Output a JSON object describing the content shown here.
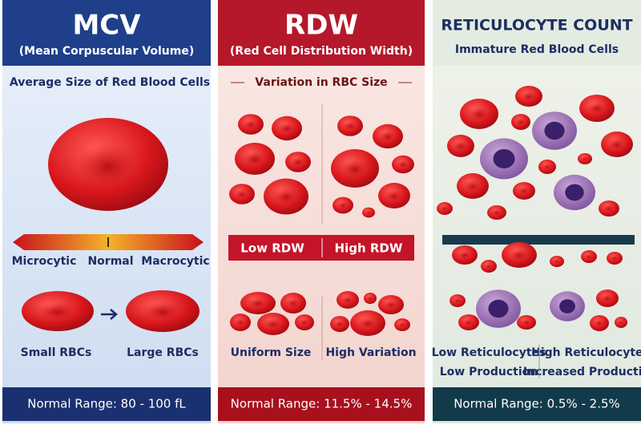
{
  "panels": [
    {
      "title": "MCV",
      "subtitle": "(Mean Corpuscular Volume)",
      "heading": "Average Size of Red Blood Cells",
      "scale": [
        "Microcytic",
        "Normal",
        "Macrocytic"
      ],
      "captions": [
        "Small RBCs",
        "Large RBCs"
      ],
      "footer": "Normal Range: 80 - 100 fL"
    },
    {
      "title": "RDW",
      "subtitle": "(Red Cell Distribution Width)",
      "heading": "Variation in RBC Size",
      "bands": [
        "Low RDW",
        "High RDW"
      ],
      "captions": [
        "Uniform Size",
        "High Variation"
      ],
      "footer": "Normal Range: 11.5% - 14.5%"
    },
    {
      "title": "RETICULOCYTE COUNT",
      "subtitle": "Immature Red Blood Cells",
      "captions": [
        "Low Reticulocytes",
        "High Reticulocytes"
      ],
      "notes": [
        "Low Production",
        "Increased Production"
      ],
      "footer": "Normal Range: 0.5% - 2.5%"
    }
  ]
}
